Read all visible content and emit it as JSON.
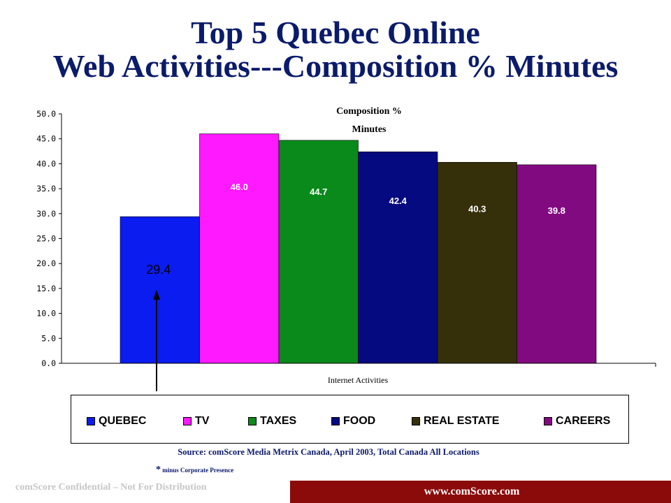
{
  "slide": {
    "title_line1": "Top 5 Quebec Online",
    "title_line2": "Web Activities---Composition % Minutes",
    "source": "Source: comScore Media Metrix Canada, April 2003, Total Canada All Locations",
    "footnote_star": "*",
    "footnote_text": " minus Corporate Presence",
    "confidential": "comScore Confidential – Not For Distribution",
    "url": "www.comScore.com",
    "footer_color": "#8b0a0a",
    "title_color": "#0b1b6b"
  },
  "chart_data": {
    "type": "bar",
    "title_line1": "Composition %",
    "title_line2": "Minutes",
    "xlabel": "Internet Activities",
    "ylabel": "",
    "ylim": [
      0,
      50
    ],
    "yticks": [
      "0.0",
      "5.0",
      "10.0",
      "15.0",
      "20.0",
      "25.0",
      "30.0",
      "35.0",
      "40.0",
      "45.0",
      "50.0"
    ],
    "grid": false,
    "legend": "bottom",
    "series": [
      {
        "name": "QUEBEC",
        "value": 29.4,
        "label": "29.4",
        "color": "#0a1cf0",
        "label_color": "#000000"
      },
      {
        "name": "TV",
        "value": 46.0,
        "label": "46.0",
        "color": "#ff19ff",
        "label_color": "#ffffff"
      },
      {
        "name": "TAXES",
        "value": 44.7,
        "label": "44.7",
        "color": "#0a8a1a",
        "label_color": "#ffffff"
      },
      {
        "name": "FOOD",
        "value": 42.4,
        "label": "42.4",
        "color": "#050a80",
        "label_color": "#ffffff"
      },
      {
        "name": "REAL ESTATE",
        "value": 40.3,
        "label": "40.3",
        "color": "#35300a",
        "label_color": "#ffffff"
      },
      {
        "name": "CAREERS",
        "value": 39.8,
        "label": "39.8",
        "color": "#820a80",
        "label_color": "#ffffff"
      }
    ]
  }
}
